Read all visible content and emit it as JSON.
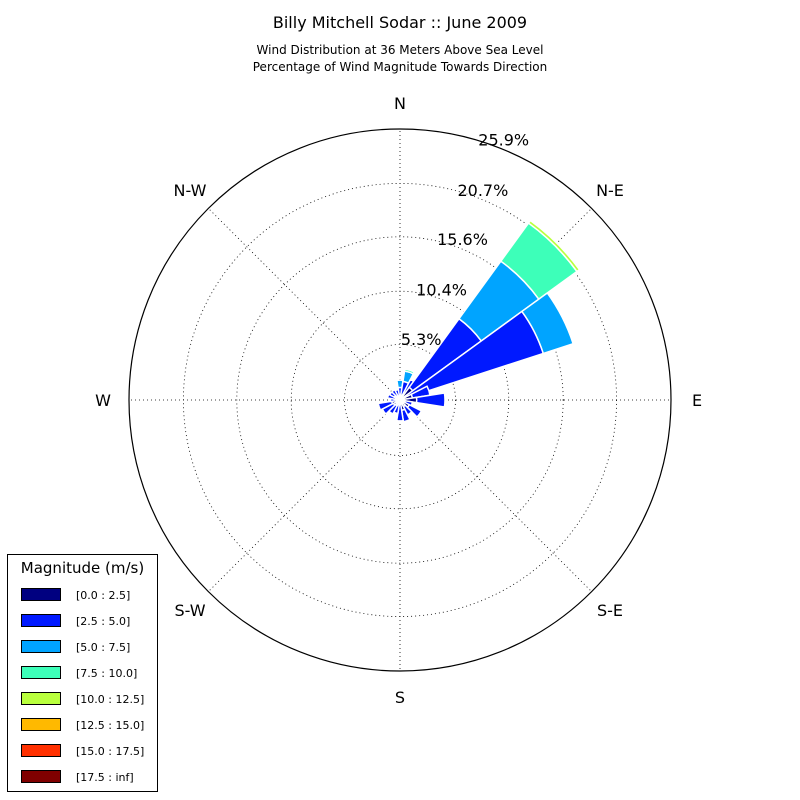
{
  "chart_data": {
    "type": "polar-bar",
    "title": "Billy Mitchell Sodar :: June 2009",
    "subtitle_line1": "Wind Distribution at 36 Meters Above Sea Level",
    "subtitle_line2": "Percentage of Wind Magnitude Towards Direction",
    "directions": [
      "N",
      "N-E",
      "E",
      "S-E",
      "S",
      "S-W",
      "W",
      "N-W"
    ],
    "radial_ticks": [
      "5.3%",
      "10.4%",
      "15.6%",
      "20.7%",
      "25.9%"
    ],
    "radial_tick_values": [
      5.3,
      10.4,
      15.6,
      20.7,
      25.9
    ],
    "rmax": 25.9,
    "bin_width_deg": 18,
    "legend_title": "Magnitude (m/s)",
    "bins": [
      {
        "label": "[0.0 : 2.5]",
        "color": "#000080"
      },
      {
        "label": "[2.5 : 5.0]",
        "color": "#0019ff"
      },
      {
        "label": "[5.0 : 7.5]",
        "color": "#00a4ff"
      },
      {
        "label": "[7.5 : 10.0]",
        "color": "#3dffb9"
      },
      {
        "label": "[10.0 : 12.5]",
        "color": "#b9ff3d"
      },
      {
        "label": "[12.5 : 15.0]",
        "color": "#ffb900"
      },
      {
        "label": "[15.0 : 17.5]",
        "color": "#ff3000"
      },
      {
        "label": "[17.5 : inf]",
        "color": "#800000"
      }
    ],
    "sectors": [
      {
        "dir_deg": 0,
        "cum": [
          0.4,
          1.2,
          1.9
        ]
      },
      {
        "dir_deg": 18,
        "cum": [
          0.5,
          1.8,
          2.8,
          3.0
        ]
      },
      {
        "dir_deg": 36,
        "cum": [
          0.7,
          2.2
        ]
      },
      {
        "dir_deg": 45,
        "cum": [
          1.5,
          9.6,
          16.4,
          20.9,
          21.2
        ]
      },
      {
        "dir_deg": 63,
        "cum": [
          0.8,
          14.4,
          17.4
        ]
      },
      {
        "dir_deg": 72,
        "cum": [
          1.2,
          2.9
        ]
      },
      {
        "dir_deg": 90,
        "cum": [
          1.6,
          4.3
        ]
      },
      {
        "dir_deg": 108,
        "cum": [
          0.5,
          1.2
        ]
      },
      {
        "dir_deg": 126,
        "cum": [
          1.0,
          2.3
        ]
      },
      {
        "dir_deg": 144,
        "cum": [
          0.7,
          1.6
        ]
      },
      {
        "dir_deg": 162,
        "cum": [
          1.0,
          2.1
        ]
      },
      {
        "dir_deg": 180,
        "cum": [
          0.4,
          2.0
        ]
      },
      {
        "dir_deg": 198,
        "cum": [
          0.5,
          1.3
        ]
      },
      {
        "dir_deg": 216,
        "cum": [
          0.6,
          1.5
        ]
      },
      {
        "dir_deg": 234,
        "cum": [
          0.7,
          1.9
        ]
      },
      {
        "dir_deg": 252,
        "cum": [
          0.8,
          2.1
        ]
      },
      {
        "dir_deg": 270,
        "cum": [
          0.4,
          0.9
        ]
      },
      {
        "dir_deg": 288,
        "cum": [
          0.4,
          1.2
        ]
      },
      {
        "dir_deg": 306,
        "cum": [
          0.6,
          1.1
        ]
      },
      {
        "dir_deg": 324,
        "cum": [
          0.4,
          1.1
        ]
      },
      {
        "dir_deg": 342,
        "cum": [
          0.3,
          1.0
        ]
      }
    ]
  }
}
